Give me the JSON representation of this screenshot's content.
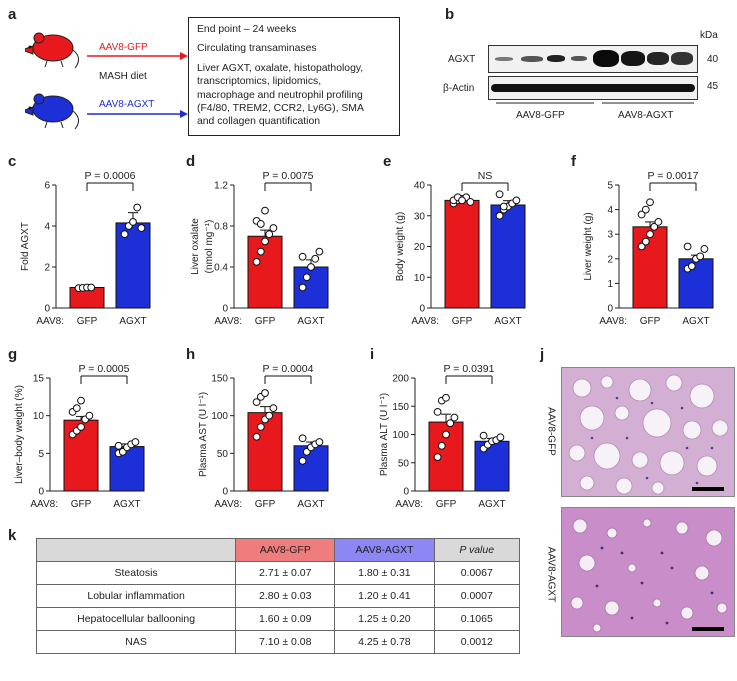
{
  "panel_a": {
    "label": "a",
    "gfp_arrow_label": "AAV8-GFP",
    "agxt_arrow_label": "AAV8-AGXT",
    "diet_label": "MASH diet",
    "box_lines": [
      "End point – 24 weeks",
      "Circulating transaminases",
      "Liver AGXT, oxalate, histopathology,",
      "transcriptomics, lipidomics,",
      "macrophage and neutrophil profiling",
      "(F4/80, TREM2, CCR2, Ly6G), SMA",
      "and collagen quantification"
    ],
    "colors": {
      "gfp": "#e8191c",
      "agxt": "#1d2fd6"
    }
  },
  "panel_b": {
    "label": "b",
    "kda_label": "kDa",
    "rows": [
      {
        "name": "AGXT",
        "kda": "40"
      },
      {
        "name": "β-Actin",
        "kda": "45"
      }
    ],
    "group_labels": [
      "AAV8-GFP",
      "AAV8-AGXT"
    ]
  },
  "bar_charts": [
    {
      "id": "c",
      "label": "c",
      "ylabel": "Fold AGXT",
      "ticks": [
        "0",
        "2",
        "4",
        "6"
      ],
      "ymax": 6,
      "prefix": "AAV8:",
      "groups": [
        "GFP",
        "AGXT"
      ],
      "means": [
        1.0,
        4.15
      ],
      "errs": [
        0.05,
        0.5
      ],
      "points": [
        [
          0.97,
          0.98,
          1.0,
          1.0
        ],
        [
          3.6,
          4.0,
          4.2,
          4.9,
          3.9
        ]
      ],
      "pvalue": "P = 0.0006"
    },
    {
      "id": "d",
      "label": "d",
      "ylabel": "Liver oxalate",
      "ylabel2": "(nmol mg⁻¹)",
      "ticks": [
        "0",
        "0.4",
        "0.8",
        "1.2"
      ],
      "ymax": 1.2,
      "prefix": "AAV8:",
      "groups": [
        "GFP",
        "AGXT"
      ],
      "means": [
        0.7,
        0.4
      ],
      "errs": [
        0.06,
        0.07
      ],
      "points": [
        [
          0.45,
          0.55,
          0.65,
          0.72,
          0.78,
          0.85,
          0.82,
          0.95
        ],
        [
          0.2,
          0.3,
          0.4,
          0.48,
          0.55,
          0.5
        ]
      ],
      "pvalue": "P = 0.0075"
    },
    {
      "id": "e",
      "label": "e",
      "ylabel": "Body weight (g)",
      "ticks": [
        "0",
        "10",
        "20",
        "30",
        "40"
      ],
      "ymax": 40,
      "prefix": "AAV8:",
      "groups": [
        "GFP",
        "AGXT"
      ],
      "means": [
        35,
        33.5
      ],
      "errs": [
        0.6,
        1.4
      ],
      "points": [
        [
          34,
          35,
          35.5,
          36,
          34.5,
          35,
          36,
          35
        ],
        [
          30,
          32,
          33,
          34,
          35,
          37,
          33
        ]
      ],
      "pvalue": "NS"
    },
    {
      "id": "f",
      "label": "f",
      "ylabel": "Liver weight (g)",
      "ticks": [
        "0",
        "1",
        "2",
        "3",
        "4",
        "5"
      ],
      "ymax": 5,
      "prefix": "AAV8:",
      "groups": [
        "GFP",
        "AGXT"
      ],
      "means": [
        3.3,
        2.0
      ],
      "errs": [
        0.2,
        0.15
      ],
      "points": [
        [
          2.5,
          2.7,
          3.0,
          3.3,
          3.5,
          3.8,
          4.0,
          4.3
        ],
        [
          1.6,
          1.7,
          2.0,
          2.1,
          2.4,
          2.5
        ]
      ],
      "pvalue": "P = 0.0017"
    },
    {
      "id": "g",
      "label": "g",
      "ylabel": "Liver–body weight (%)",
      "ticks": [
        "0",
        "5",
        "10",
        "15"
      ],
      "ymax": 15,
      "prefix": "AAV8:",
      "groups": [
        "GFP",
        "AGXT"
      ],
      "means": [
        9.4,
        5.9
      ],
      "errs": [
        0.5,
        0.35
      ],
      "points": [
        [
          7.5,
          8.0,
          8.5,
          9.5,
          10.0,
          10.5,
          11.0,
          12.0
        ],
        [
          5.0,
          5.2,
          5.8,
          6.2,
          6.5,
          6.0
        ]
      ],
      "pvalue": "P = 0.0005"
    },
    {
      "id": "h",
      "label": "h",
      "ylabel": "Plasma AST (U l⁻¹)",
      "ticks": [
        "0",
        "50",
        "100",
        "150"
      ],
      "ymax": 150,
      "prefix": "AAV8:",
      "groups": [
        "GFP",
        "AGXT"
      ],
      "means": [
        104,
        60
      ],
      "errs": [
        8,
        5
      ],
      "points": [
        [
          72,
          85,
          95,
          100,
          110,
          118,
          125,
          130
        ],
        [
          40,
          52,
          58,
          62,
          65,
          70
        ]
      ],
      "pvalue": "P = 0.0004"
    },
    {
      "id": "i",
      "label": "i",
      "ylabel": "Plasma ALT (U l⁻¹)",
      "ticks": [
        "0",
        "50",
        "100",
        "150",
        "200"
      ],
      "ymax": 200,
      "prefix": "AAV8:",
      "groups": [
        "GFP",
        "AGXT"
      ],
      "means": [
        122,
        88
      ],
      "errs": [
        14,
        5
      ],
      "points": [
        [
          60,
          80,
          100,
          120,
          130,
          140,
          160,
          165
        ],
        [
          75,
          82,
          88,
          90,
          95,
          98
        ]
      ],
      "pvalue": "P = 0.0391"
    }
  ],
  "panel_j": {
    "label": "j",
    "images": [
      {
        "caption": "AAV8-GFP"
      },
      {
        "caption": "AAV8-AGXT"
      }
    ]
  },
  "panel_k": {
    "label": "k",
    "headers": [
      "",
      "AAV8-GFP",
      "AAV8-AGXT",
      "P value"
    ],
    "rows": [
      [
        "Steatosis",
        "2.71 ± 0.07",
        "1.80 ± 0.31",
        "0.0067"
      ],
      [
        "Lobular inflammation",
        "2.80 ± 0.03",
        "1.20 ± 0.41",
        "0.0007"
      ],
      [
        "Hepatocellular ballooning",
        "1.60 ± 0.09",
        "1.25 ± 0.20",
        "0.1065"
      ],
      [
        "NAS",
        "7.10 ± 0.08",
        "4.25 ± 0.78",
        "0.0012"
      ]
    ],
    "header_colors": [
      "#d9d9d9",
      "#f07d7d",
      "#8c87f5",
      "#d9d9d9"
    ]
  }
}
